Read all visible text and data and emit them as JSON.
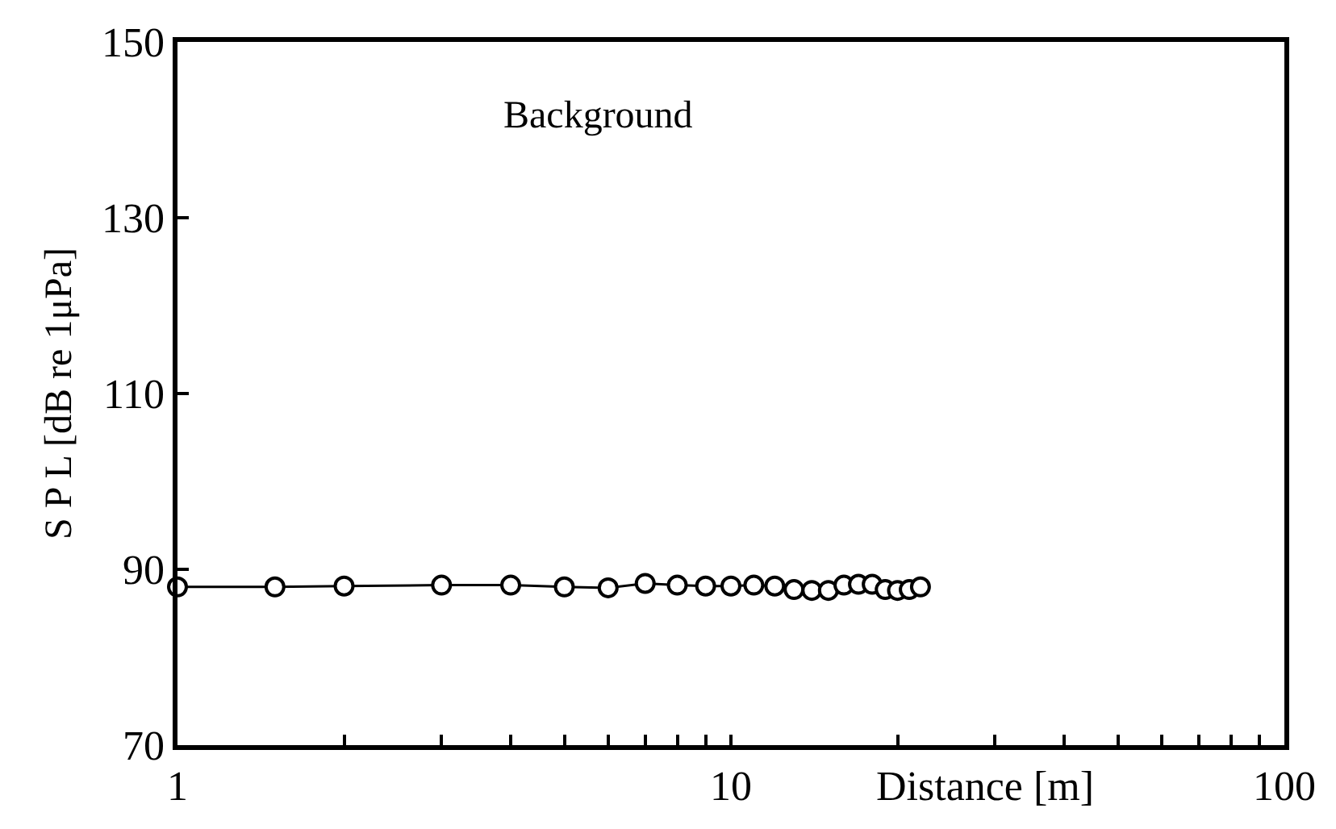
{
  "chart_data": {
    "type": "line",
    "xlabel": "Distance [m]",
    "ylabel": "S P L [dB re 1μPa]",
    "annotations": [
      "Background"
    ],
    "log": "x",
    "marker": "circle",
    "line_style": "solid",
    "xlim": [
      1,
      100
    ],
    "ylim": [
      70,
      150
    ],
    "xticks": [
      1,
      {
        "value": 2,
        "label": null
      },
      {
        "value": 3,
        "label": null
      },
      {
        "value": 4,
        "label": null
      },
      {
        "value": 5,
        "label": null
      },
      {
        "value": 6,
        "label": null
      },
      {
        "value": 7,
        "label": null
      },
      {
        "value": 8,
        "label": null
      },
      {
        "value": 9,
        "label": null
      },
      10,
      {
        "value": 20,
        "label": null
      },
      {
        "value": 30,
        "label": null
      },
      {
        "value": 40,
        "label": null
      },
      {
        "value": 50,
        "label": null
      },
      {
        "value": 60,
        "label": null
      },
      {
        "value": 70,
        "label": null
      },
      {
        "value": 80,
        "label": null
      },
      {
        "value": 90,
        "label": null
      },
      100
    ],
    "yticks": [
      70,
      90,
      110,
      130,
      150
    ],
    "x": [
      1,
      1.5,
      2,
      3,
      4,
      5,
      6,
      7,
      8,
      9,
      10,
      11,
      12,
      13,
      14,
      15,
      16,
      17,
      18,
      19,
      20,
      21,
      22
    ],
    "series": [
      {
        "color": "#000000",
        "values": [
          88,
          88,
          88.1,
          88.2,
          88.2,
          88,
          87.9,
          88.4,
          88.2,
          88.1,
          88.1,
          88.2,
          88.1,
          87.7,
          87.6,
          87.6,
          88.2,
          88.3,
          88.3,
          87.7,
          87.6,
          87.7,
          88
        ]
      }
    ]
  }
}
